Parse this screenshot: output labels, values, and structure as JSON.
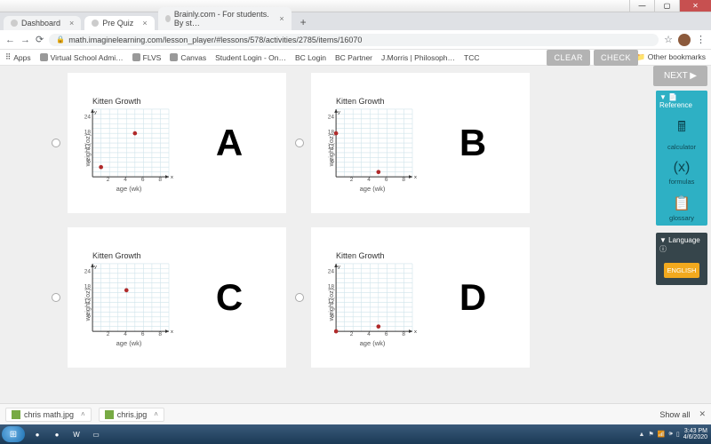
{
  "window": {
    "min": "—",
    "max": "▢",
    "close": "✕"
  },
  "tabs": [
    {
      "label": "Dashboard",
      "active": false
    },
    {
      "label": "Pre Quiz",
      "active": true
    },
    {
      "label": "Brainly.com - For students. By st…",
      "active": false
    }
  ],
  "addtab": "+",
  "nav": {
    "back": "←",
    "fwd": "→",
    "reload": "⟳"
  },
  "omnibox": {
    "lock": "🔒",
    "url": "math.imaginelearning.com/lesson_player/#lessons/578/activities/2785/items/16070",
    "star": "☆"
  },
  "menu_glyph": "⋮",
  "bookmarks_bar": {
    "apps": "Apps",
    "items": [
      "Virtual School Admi…",
      "FLVS",
      "Canvas",
      "Student Login - On…",
      "BC Login",
      "BC Partner",
      "J.Morris | Philosoph…",
      "TCC"
    ],
    "other": "Other bookmarks"
  },
  "controls": {
    "clear": "CLEAR",
    "check": "CHECK",
    "next": "NEXT ▶"
  },
  "reference": {
    "header": "▼ 📄Reference",
    "items": [
      {
        "glyph": "🖩",
        "label": "calculator"
      },
      {
        "glyph": "(x)",
        "label": "formulas"
      },
      {
        "glyph": "📋",
        "label": "glossary"
      }
    ]
  },
  "language": {
    "header": "▼ Language ⓘ",
    "button": "ENGLISH"
  },
  "chart_common": {
    "title": "Kitten Growth",
    "ylabel": "weight (oz)",
    "xlabel": "age (wk)",
    "x_arrow": "x",
    "y_arrow": "y",
    "xlim": [
      0,
      9
    ],
    "ylim": [
      0,
      28
    ],
    "xticks": [
      2,
      4,
      6,
      8
    ],
    "yticks": [
      6,
      12,
      18,
      24
    ],
    "grid_color": "#cfe3ea",
    "axis_color": "#333333",
    "point_color": "#b02a2a",
    "point_radius": 2.4,
    "background": "#ffffff",
    "title_fontsize": 9,
    "label_fontsize": 7.5,
    "tick_fontsize": 6.5
  },
  "cards": [
    {
      "letter": "A",
      "points": [
        {
          "x": 1,
          "y": 4
        },
        {
          "x": 5,
          "y": 18
        }
      ]
    },
    {
      "letter": "B",
      "points": [
        {
          "x": 0,
          "y": 18
        },
        {
          "x": 5,
          "y": 2
        }
      ]
    },
    {
      "letter": "C",
      "points": [
        {
          "x": 4,
          "y": 17
        }
      ]
    },
    {
      "letter": "D",
      "points": [
        {
          "x": 0,
          "y": 0
        },
        {
          "x": 5,
          "y": 2
        }
      ]
    }
  ],
  "downloads": {
    "items": [
      {
        "name": "chris math.jpg"
      },
      {
        "name": "chris.jpg"
      }
    ],
    "showall": "Show all",
    "close": "✕",
    "chev": "˄"
  },
  "taskbar": {
    "start": "⊞",
    "icons": [
      "●",
      "●",
      "W",
      "▭"
    ],
    "tray": [
      "▲",
      "⚑",
      "📶",
      "🕪",
      "▯"
    ],
    "time": "3:43 PM",
    "date": "4/6/2020"
  }
}
